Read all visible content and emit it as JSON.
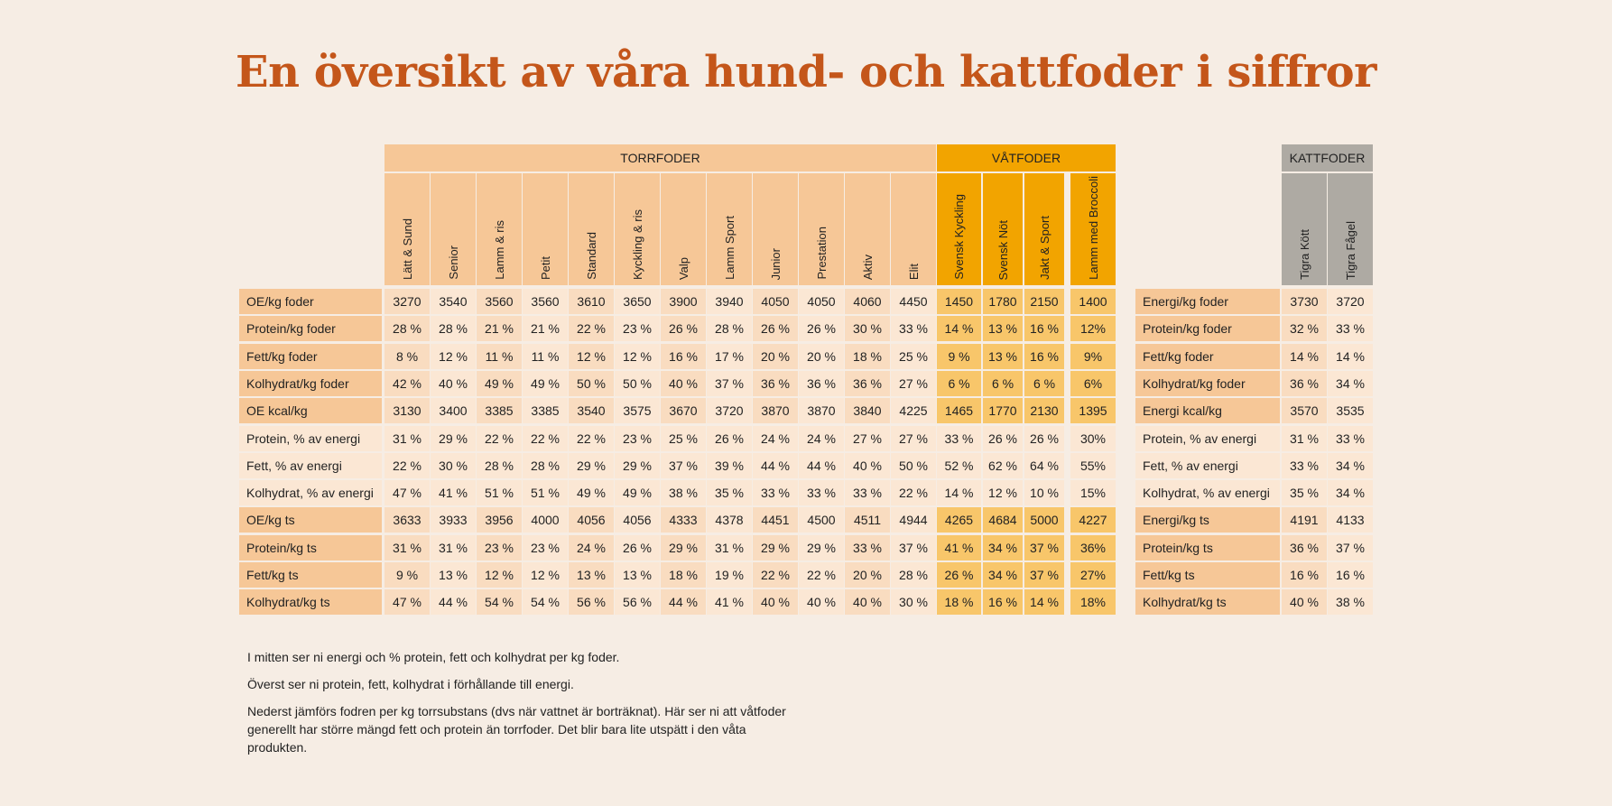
{
  "title": "En översikt av våra hund- och kattfoder i siffror",
  "groups": {
    "dry": "TORRFODER",
    "wet": "VÅTFODER",
    "cat": "KATTFODER"
  },
  "dog_columns": [
    "Lätt & Sund",
    "Senior",
    "Lamm & ris",
    "Petit",
    "Standard",
    "Kyckling & ris",
    "Valp",
    "Lamm Sport",
    "Junior",
    "Prestation",
    "Aktiv",
    "Elit",
    "Svensk Kyckling",
    "Svensk Nöt",
    "Jakt & Sport",
    "Lamm med Broccoli"
  ],
  "cat_columns": [
    "Tigra Kött",
    "Tigra Fågel"
  ],
  "dog_rows": [
    {
      "label": "OE/kg foder",
      "values": [
        "3270",
        "3540",
        "3560",
        "3560",
        "3610",
        "3650",
        "3900",
        "3940",
        "4050",
        "4050",
        "4060",
        "4450",
        "1450",
        "1780",
        "2150",
        "1400"
      ]
    },
    {
      "label": "Protein/kg foder",
      "values": [
        "28 %",
        "28 %",
        "21 %",
        "21 %",
        "22 %",
        "23 %",
        "26 %",
        "28 %",
        "26 %",
        "26 %",
        "30 %",
        "33 %",
        "14 %",
        "13 %",
        "16 %",
        "12%"
      ]
    },
    {
      "label": "Fett/kg foder",
      "values": [
        "8 %",
        "12 %",
        "11 %",
        "11 %",
        "12 %",
        "12 %",
        "16 %",
        "17 %",
        "20 %",
        "20 %",
        "18 %",
        "25 %",
        "9 %",
        "13 %",
        "16 %",
        "9%"
      ]
    },
    {
      "label": "Kolhydrat/kg foder",
      "values": [
        "42 %",
        "40 %",
        "49 %",
        "49 %",
        "50 %",
        "50 %",
        "40 %",
        "37 %",
        "36 %",
        "36 %",
        "36 %",
        "27 %",
        "6 %",
        "6 %",
        "6 %",
        "6%"
      ]
    },
    {
      "label": "OE kcal/kg",
      "values": [
        "3130",
        "3400",
        "3385",
        "3385",
        "3540",
        "3575",
        "3670",
        "3720",
        "3870",
        "3870",
        "3840",
        "4225",
        "1465",
        "1770",
        "2130",
        "1395"
      ]
    },
    {
      "label": "Protein, % av energi",
      "values": [
        "31 %",
        "29 %",
        "22 %",
        "22 %",
        "22 %",
        "23 %",
        "25 %",
        "26 %",
        "24 %",
        "24 %",
        "27 %",
        "27 %",
        "33 %",
        "26 %",
        "26 %",
        "30%"
      ]
    },
    {
      "label": "Fett, % av energi",
      "values": [
        "22 %",
        "30 %",
        "28 %",
        "28 %",
        "29 %",
        "29 %",
        "37 %",
        "39 %",
        "44 %",
        "44 %",
        "40 %",
        "50 %",
        "52 %",
        "62 %",
        "64 %",
        "55%"
      ]
    },
    {
      "label": "Kolhydrat, % av energi",
      "values": [
        "47 %",
        "41 %",
        "51 %",
        "51 %",
        "49 %",
        "49 %",
        "38 %",
        "35 %",
        "33 %",
        "33 %",
        "33 %",
        "22 %",
        "14 %",
        "12 %",
        "10 %",
        "15%"
      ]
    },
    {
      "label": "OE/kg ts",
      "values": [
        "3633",
        "3933",
        "3956",
        "4000",
        "4056",
        "4056",
        "4333",
        "4378",
        "4451",
        "4500",
        "4511",
        "4944",
        "4265",
        "4684",
        "5000",
        "4227"
      ]
    },
    {
      "label": "Protein/kg ts",
      "values": [
        "31 %",
        "31 %",
        "23 %",
        "23 %",
        "24 %",
        "26 %",
        "29 %",
        "31 %",
        "29 %",
        "29 %",
        "33 %",
        "37 %",
        "41 %",
        "34 %",
        "37 %",
        "36%"
      ]
    },
    {
      "label": "Fett/kg ts",
      "values": [
        "9 %",
        "13 %",
        "12 %",
        "12 %",
        "13 %",
        "13 %",
        "18 %",
        "19 %",
        "22 %",
        "22 %",
        "20 %",
        "28 %",
        "26 %",
        "34 %",
        "37 %",
        "27%"
      ]
    },
    {
      "label": "Kolhydrat/kg ts",
      "values": [
        "47 %",
        "44 %",
        "54 %",
        "54 %",
        "56 %",
        "56 %",
        "44 %",
        "41 %",
        "40 %",
        "40 %",
        "40 %",
        "30 %",
        "18 %",
        "16 %",
        "14 %",
        "18%"
      ]
    }
  ],
  "cat_rows": [
    {
      "label": "Energi/kg foder",
      "values": [
        "3730",
        "3720"
      ]
    },
    {
      "label": "Protein/kg foder",
      "values": [
        "32 %",
        "33 %"
      ]
    },
    {
      "label": "Fett/kg foder",
      "values": [
        "14 %",
        "14 %"
      ]
    },
    {
      "label": "Kolhydrat/kg foder",
      "values": [
        "36 %",
        "34 %"
      ]
    },
    {
      "label": "Energi kcal/kg",
      "values": [
        "3570",
        "3535"
      ]
    },
    {
      "label": "Protein, % av energi",
      "values": [
        "31 %",
        "33 %"
      ]
    },
    {
      "label": "Fett, % av energi",
      "values": [
        "33 %",
        "34 %"
      ]
    },
    {
      "label": "Kolhydrat, % av energi",
      "values": [
        "35 %",
        "34 %"
      ]
    },
    {
      "label": "Energi/kg ts",
      "values": [
        "4191",
        "4133"
      ]
    },
    {
      "label": "Protein/kg ts",
      "values": [
        "36 %",
        "37 %"
      ]
    },
    {
      "label": "Fett/kg ts",
      "values": [
        "16 %",
        "16 %"
      ]
    },
    {
      "label": "Kolhydrat/kg ts",
      "values": [
        "40 %",
        "38 %"
      ]
    }
  ],
  "footnotes": [
    "I mitten ser ni energi och % protein, fett och kolhydrat per kg foder.",
    "Överst ser ni protein, fett, kolhydrat i förhållande till energi.",
    "Nederst jämförs fodren per kg torrsubstans (dvs när vattnet är borträknat). Här ser ni att våtfoder generellt har större mängd fett och protein än torrfoder. Det blir bara lite utspätt i den våta produkten."
  ]
}
